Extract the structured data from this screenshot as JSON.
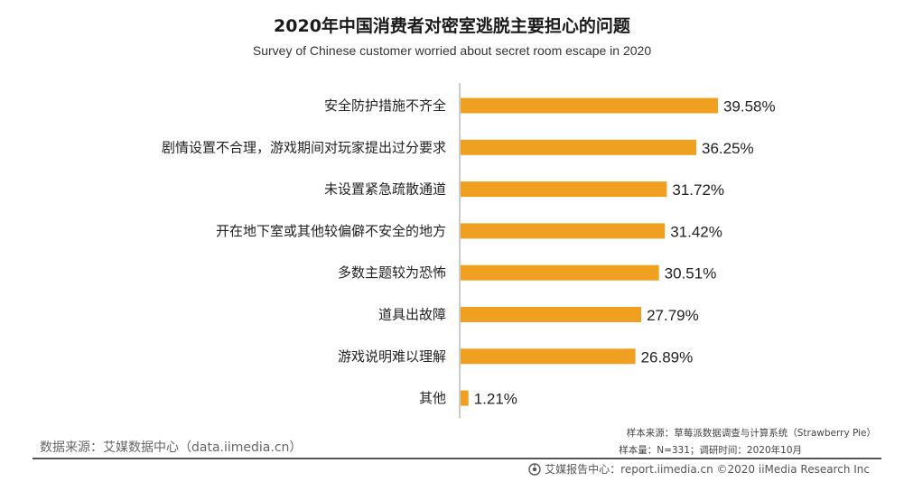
{
  "title": "2020年中国消费者对密室逃脱主要担心的问题",
  "subtitle": "Survey of Chinese customer worried about secret room escape in 2020",
  "chart_data": {
    "type": "bar",
    "orientation": "horizontal",
    "categories": [
      "安全防护措施不齐全",
      "剧情设置不合理，游戏期间对玩家提出过分要求",
      "未设置紧急疏散通道",
      "开在地下室或其他较偏僻不安全的地方",
      "多数主题较为恐怖",
      "道具出故障",
      "游戏说明难以理解",
      "其他"
    ],
    "values": [
      39.58,
      36.25,
      31.72,
      31.42,
      30.51,
      27.79,
      26.89,
      1.21
    ],
    "value_labels": [
      "39.58%",
      "36.25%",
      "31.72%",
      "31.42%",
      "30.51%",
      "27.79%",
      "26.89%",
      "1.21%"
    ],
    "xlim": [
      0,
      40
    ],
    "bar_color": "#f0a020",
    "axis_color": "#999999",
    "grid": false,
    "legend": "none"
  },
  "source_left": "数据来源：艾媒数据中心（data.iimedia.cn）",
  "sample_source": "样本来源：草莓派数据调查与计算系统（Strawberry Pie）",
  "sample_info": "样本量：N=331；调研时间：2020年10月",
  "footer": {
    "icon": "iimedia-logo-icon",
    "text": "艾媒报告中心：report.iimedia.cn  ©2020  iiMedia Research Inc"
  }
}
